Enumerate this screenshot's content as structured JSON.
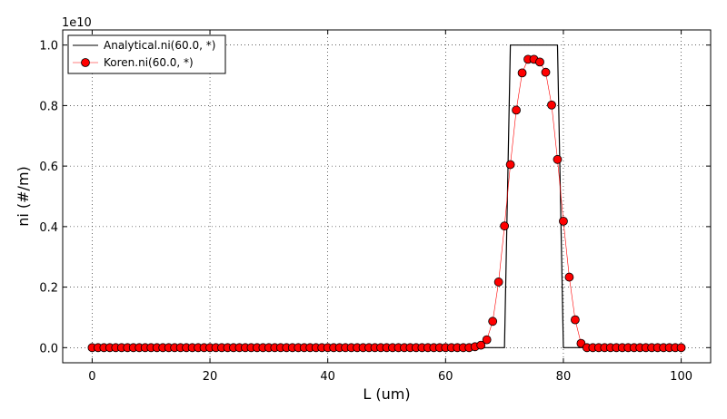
{
  "chart_data": {
    "type": "line",
    "xlabel": "L (um)",
    "ylabel": "ni (#/m)",
    "offset_text": "1e10",
    "xlim": [
      -5,
      105
    ],
    "ylim": [
      -0.05,
      1.05
    ],
    "y_scale_multiplier": 10000000000,
    "x_ticks": [
      0,
      20,
      40,
      60,
      80,
      100
    ],
    "x_tick_labels": [
      "0",
      "20",
      "40",
      "60",
      "80",
      "100"
    ],
    "y_ticks": [
      0.0,
      0.2,
      0.4,
      0.6,
      0.8,
      1.0
    ],
    "y_tick_labels": [
      "0.0",
      "0.2",
      "0.4",
      "0.6",
      "0.8",
      "1.0"
    ],
    "grid": true,
    "legend_position": "top-left",
    "series": [
      {
        "name": "Analytical.ni(60.0, *)",
        "color": "#000000",
        "style": "line",
        "x": [
          0,
          70,
          71,
          79,
          80,
          100
        ],
        "y": [
          0,
          0,
          1.0,
          1.0,
          0,
          0
        ]
      },
      {
        "name": "Koren.ni(60.0, *)",
        "color": "#ff0000",
        "style": "line-marker",
        "x": [
          0,
          1,
          2,
          3,
          4,
          5,
          6,
          7,
          8,
          9,
          10,
          11,
          12,
          13,
          14,
          15,
          16,
          17,
          18,
          19,
          20,
          21,
          22,
          23,
          24,
          25,
          26,
          27,
          28,
          29,
          30,
          31,
          32,
          33,
          34,
          35,
          36,
          37,
          38,
          39,
          40,
          41,
          42,
          43,
          44,
          45,
          46,
          47,
          48,
          49,
          50,
          51,
          52,
          53,
          54,
          55,
          56,
          57,
          58,
          59,
          60,
          61,
          62,
          63,
          64,
          65,
          66,
          67,
          68,
          69,
          70,
          71,
          72,
          73,
          74,
          75,
          76,
          77,
          78,
          79,
          80,
          81,
          82,
          83,
          84,
          85,
          86,
          87,
          88,
          89,
          90,
          91,
          92,
          93,
          94,
          95,
          96,
          97,
          98,
          99,
          100
        ],
        "y": [
          0,
          0,
          0,
          0,
          0,
          0,
          0,
          0,
          0,
          0,
          0,
          0,
          0,
          0,
          0,
          0,
          0,
          0,
          0,
          0,
          0,
          0,
          0,
          0,
          0,
          0,
          0,
          0,
          0,
          0,
          0,
          0,
          0,
          0,
          0,
          0,
          0,
          0,
          0,
          0,
          0,
          0,
          0,
          0,
          0,
          0,
          0,
          0,
          0,
          0,
          0,
          0,
          0,
          0,
          0,
          0,
          0,
          0,
          0,
          0,
          0,
          0,
          0,
          0,
          0,
          0.003,
          0.008,
          0.026,
          0.087,
          0.217,
          0.402,
          0.605,
          0.785,
          0.908,
          0.953,
          0.953,
          0.944,
          0.91,
          0.802,
          0.622,
          0.418,
          0.233,
          0.092,
          0.014,
          0,
          0,
          0,
          0,
          0,
          0,
          0,
          0,
          0,
          0,
          0,
          0,
          0,
          0,
          0,
          0,
          0
        ]
      }
    ]
  }
}
